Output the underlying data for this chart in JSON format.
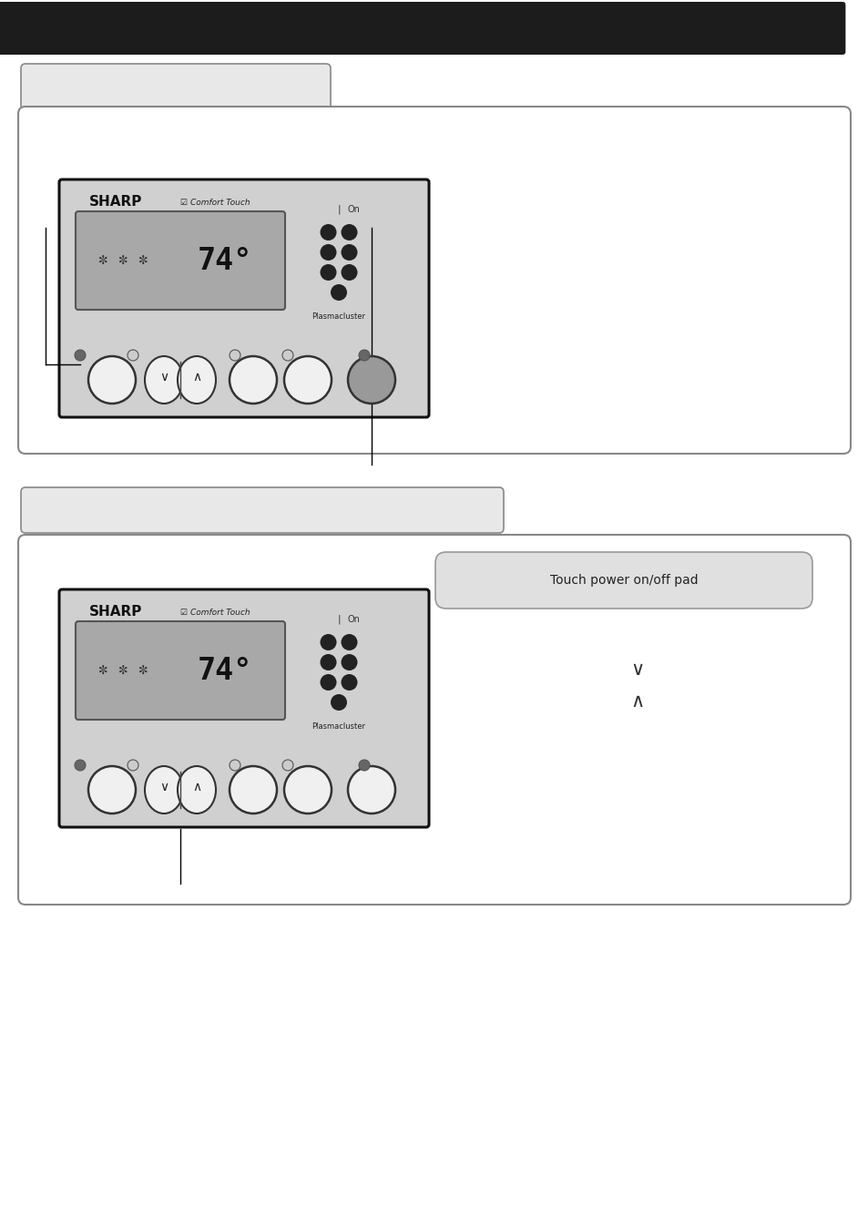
{
  "bg_color": "#ffffff",
  "header_color": "#1c1c1c",
  "body_color": "#d0d0d0",
  "display_color": "#a8a8a8",
  "panel_border": "#111111",
  "label_bg": "#e8e8e8",
  "label_border": "#888888",
  "content_border": "#888888",
  "content_bg": "#ffffff",
  "dot_dark": "#666666",
  "dot_light": "#cccccc",
  "power_btn_color": "#999999",
  "normal_btn_color": "#f0f0f0",
  "touch_pill_bg": "#e0e0e0",
  "touch_pill_border": "#999999",
  "section1_title": "",
  "section2_title": "",
  "sharp_label": "SHARP",
  "comfort_label": "Comfort Touch",
  "pc_label": "Plasmacluster",
  "touch_label": "Touch power on/off pad"
}
